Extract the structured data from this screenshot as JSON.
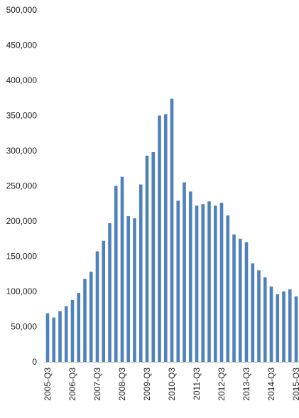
{
  "chart_data": {
    "type": "bar",
    "title": "",
    "xlabel": "",
    "ylabel": "",
    "ylim": [
      0,
      500000
    ],
    "grid": false,
    "legend": "none",
    "bar_color": "#4f81bd",
    "y_ticks": [
      "0",
      "50,000",
      "100,000",
      "150,000",
      "200,000",
      "250,000",
      "300,000",
      "350,000",
      "400,000",
      "450,000",
      "500,000"
    ],
    "y_tick_values": [
      0,
      50000,
      100000,
      150000,
      200000,
      250000,
      300000,
      350000,
      400000,
      450000,
      500000
    ],
    "x_tick_labels": [
      "2005-Q3",
      "2006-Q3",
      "2007-Q3",
      "2008-Q3",
      "2009-Q3",
      "2010-Q3",
      "2011-Q3",
      "2012-Q3",
      "2013-Q3",
      "2014-Q3",
      "2015-Q3"
    ],
    "x_tick_indices": [
      0,
      4,
      8,
      12,
      16,
      20,
      24,
      28,
      32,
      36,
      40
    ],
    "values": [
      69000,
      63000,
      72000,
      79000,
      88000,
      98000,
      118000,
      128000,
      157000,
      172000,
      197000,
      250000,
      263000,
      207000,
      204000,
      252000,
      293000,
      298000,
      350000,
      352000,
      374000,
      229000,
      255000,
      242000,
      222000,
      224000,
      228000,
      222000,
      226000,
      208000,
      181000,
      175000,
      170000,
      140000,
      130000,
      120000,
      107000,
      96000,
      100000,
      103000,
      93000
    ]
  }
}
